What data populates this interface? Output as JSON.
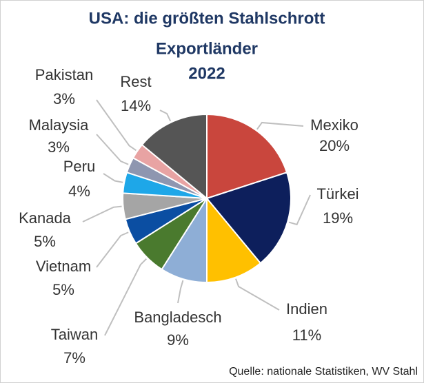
{
  "chart_data": {
    "type": "pie",
    "title": [
      "USA: die größten Stahlschrott",
      "Exportländer",
      "2022"
    ],
    "categories": [
      "Mexiko",
      "Türkei",
      "Indien",
      "Bangladesch",
      "Taiwan",
      "Vietnam",
      "Kanada",
      "Peru",
      "Malaysia",
      "Pakistan",
      "Rest"
    ],
    "values": [
      20,
      19,
      11,
      9,
      7,
      5,
      5,
      4,
      3,
      3,
      14
    ],
    "value_labels": [
      "20%",
      "19%",
      "11%",
      "9%",
      "7%",
      "5%",
      "5%",
      "4%",
      "3%",
      "3%",
      "14%"
    ],
    "colors": [
      "#c9463d",
      "#0d1f5c",
      "#ffc000",
      "#8eaed6",
      "#4a7a2e",
      "#0b4ea2",
      "#a5a5a5",
      "#1ea7e8",
      "#8e96b0",
      "#e8a3a3",
      "#555555"
    ],
    "source": "Quelle: nationale Statistiken, WV Stahl"
  }
}
